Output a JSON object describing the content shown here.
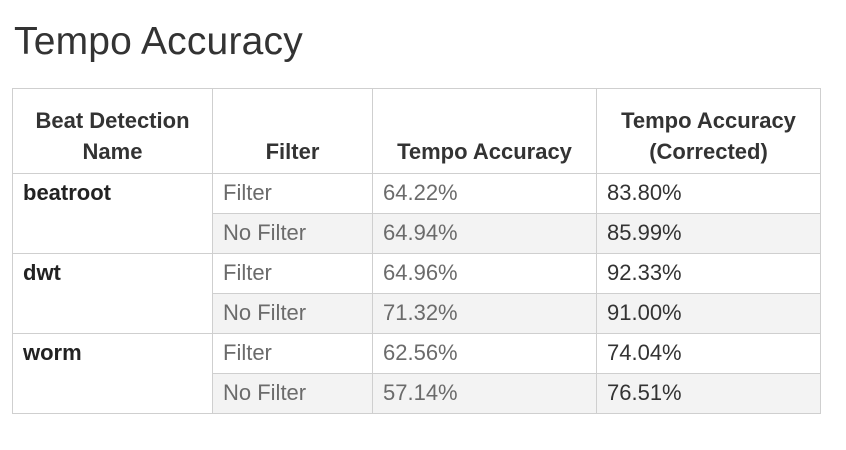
{
  "title": "Tempo Accuracy",
  "chart_data": {
    "type": "table",
    "columns": [
      "Beat Detection Name",
      "Filter",
      "Tempo Accuracy",
      "Tempo Accuracy (Corrected)"
    ],
    "groups": [
      {
        "name": "beatroot",
        "rows": [
          {
            "filter": "Filter",
            "tempo_accuracy": "64.22%",
            "tempo_accuracy_corrected": "83.80%"
          },
          {
            "filter": "No Filter",
            "tempo_accuracy": "64.94%",
            "tempo_accuracy_corrected": "85.99%"
          }
        ]
      },
      {
        "name": "dwt",
        "rows": [
          {
            "filter": "Filter",
            "tempo_accuracy": "64.96%",
            "tempo_accuracy_corrected": "92.33%"
          },
          {
            "filter": "No Filter",
            "tempo_accuracy": "71.32%",
            "tempo_accuracy_corrected": "91.00%"
          }
        ]
      },
      {
        "name": "worm",
        "rows": [
          {
            "filter": "Filter",
            "tempo_accuracy": "62.56%",
            "tempo_accuracy_corrected": "74.04%"
          },
          {
            "filter": "No Filter",
            "tempo_accuracy": "57.14%",
            "tempo_accuracy_corrected": "76.51%"
          }
        ]
      }
    ]
  }
}
